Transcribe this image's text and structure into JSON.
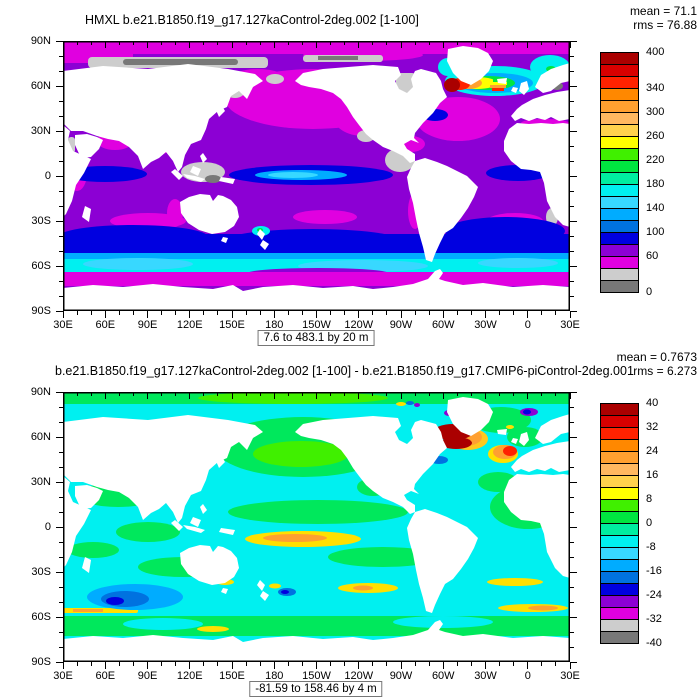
{
  "panels": [
    {
      "title": "HMXL b.e21.B1850.f19_g17.127kaControl-2deg.002 [1-100]",
      "mean": "mean = 71.1",
      "rms": "rms = 76.88",
      "caption": "7.6 to 483.1 by 20 m",
      "colorbar_ticks": [
        "400",
        "340",
        "300",
        "260",
        "220",
        "180",
        "140",
        "100",
        "60",
        "0"
      ],
      "colorbar_tick_offsets": [
        0,
        36,
        60,
        84,
        108,
        132,
        156,
        180,
        204,
        240
      ]
    },
    {
      "title": "b.e21.B1850.f19_g17.127kaControl-2deg.002 [1-100] - b.e21.B1850.f19_g17.CMIP6-piControl-2deg.001",
      "mean": "mean = 0.7673",
      "rms": "rms = 6.273",
      "caption": "-81.59 to 158.46 by 4 m",
      "colorbar_ticks": [
        "40",
        "32",
        "24",
        "16",
        "8",
        "0",
        "-8",
        "-16",
        "-24",
        "-32",
        "-40"
      ],
      "colorbar_tick_offsets": [
        0,
        24,
        48,
        72,
        96,
        120,
        144,
        168,
        192,
        216,
        240
      ]
    }
  ],
  "axes": {
    "x_tick_labels": [
      "30E",
      "60E",
      "90E",
      "120E",
      "150E",
      "180",
      "150W",
      "120W",
      "90W",
      "60W",
      "30W",
      "0",
      "30E"
    ],
    "y_tick_labels": [
      "90N",
      "60N",
      "30N",
      "0",
      "30S",
      "60S",
      "90S"
    ]
  },
  "palette_top_to_bottom": [
    "#aa0000",
    "#d80000",
    "#ff2200",
    "#ff8800",
    "#ffa030",
    "#ffb860",
    "#ffd24d",
    "#ffff00",
    "#40f000",
    "#00e640",
    "#00eea0",
    "#00f0f0",
    "#38d8ff",
    "#00acff",
    "#0072e0",
    "#0000e0",
    "#8c00d4",
    "#e000e0",
    "#cdcdcd",
    "#787878"
  ],
  "chart_data": [
    {
      "type": "heatmap",
      "variable": "HMXL (ocean mixed layer depth)",
      "title": "HMXL b.e21.B1850.f19_g17.127kaControl-2deg.002 [1-100]",
      "units": "m",
      "mean": 71.1,
      "rms": 76.88,
      "field_min": 7.6,
      "field_max": 483.1,
      "contour_interval": 20,
      "colorbar": {
        "min": 0,
        "max": 400,
        "step": 20,
        "labeled_levels": [
          0,
          60,
          100,
          140,
          180,
          220,
          260,
          300,
          340,
          400
        ]
      },
      "x_axis": {
        "ticks": [
          "30E",
          "60E",
          "90E",
          "120E",
          "150E",
          "180",
          "150W",
          "120W",
          "90W",
          "60W",
          "30W",
          "0",
          "30E"
        ],
        "minor_step_deg": 10
      },
      "y_axis": {
        "ticks": [
          "90N",
          "60N",
          "30N",
          "0",
          "30S",
          "60S",
          "90S"
        ],
        "minor_step_deg": 10
      },
      "projection": "global cylindrical equidistant, longitude 30E across dateline back to 30E",
      "notable_features": [
        "deep mixed layer hotspot (>380 m, dark red) in Labrador Sea",
        "rainbow band 100-340 m across subpolar North Atlantic, Irminger and Norwegian Seas",
        "dark blue band 100-160 m across Southern Ocean 40-55S with cyan 140-180 m near 55-60S",
        "purple/magenta 40-80 m over most subtropical oceans, blue 100 m band on equatorial Pacific",
        "gray <40 m on Arctic shelves, Indonesian seas, eastern tropical Pacific, Hudson Bay"
      ]
    },
    {
      "type": "heatmap",
      "variable": "HMXL difference (127kaControl minus CMIP6 piControl)",
      "title": "b.e21.B1850.f19_g17.127kaControl-2deg.002 [1-100] - b.e21.B1850.f19_g17.CMIP6-piControl-2deg.001",
      "units": "m",
      "mean": 0.7673,
      "rms": 6.273,
      "field_min": -81.59,
      "field_max": 158.46,
      "contour_interval": 4,
      "colorbar": {
        "min": -40,
        "max": 40,
        "step": 4,
        "labeled_levels": [
          -40,
          -32,
          -24,
          -16,
          -8,
          0,
          8,
          16,
          24,
          32,
          40
        ]
      },
      "x_axis": {
        "ticks": [
          "30E",
          "60E",
          "90E",
          "120E",
          "150E",
          "180",
          "150W",
          "120W",
          "90W",
          "60W",
          "30W",
          "0",
          "30E"
        ],
        "minor_step_deg": 10
      },
      "y_axis": {
        "ticks": [
          "90N",
          "60N",
          "30N",
          "0",
          "30S",
          "60S",
          "90S"
        ],
        "minor_step_deg": 10
      },
      "projection": "global cylindrical equidistant, longitude 30E across dateline back to 30E",
      "notable_features": [
        "large positive anomaly (>40 m, dark red) in Labrador Sea with orange/yellow halo",
        "positive (red/orange) patch west of the British Isles",
        "negative blob (-16 to -28 m, blue) in south Indian Ocean near 45S",
        "weak positive band (+8 to +16 m, yellow/orange) in western tropical South Pacific",
        "mostly small anomalies (cyan/green, within ±8 m) elsewhere"
      ]
    }
  ]
}
